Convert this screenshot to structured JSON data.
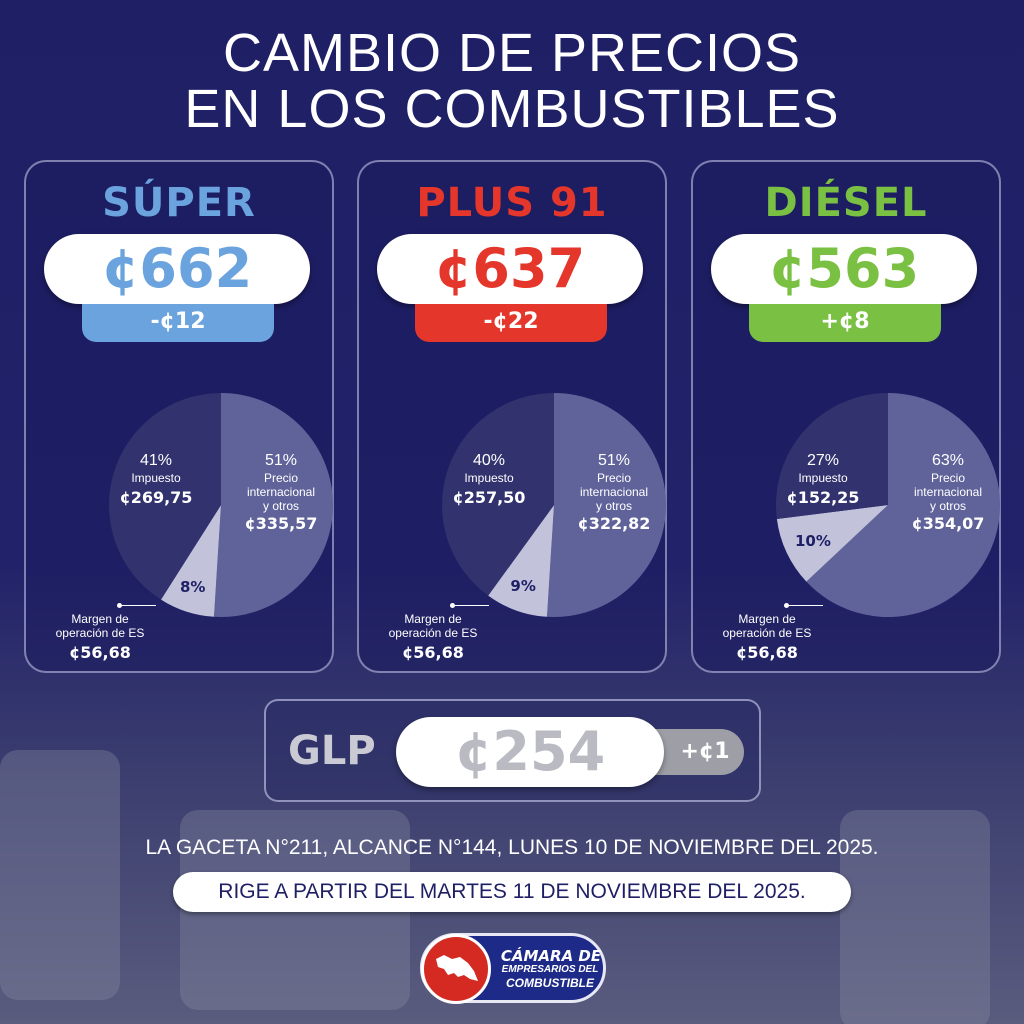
{
  "title": {
    "line1": "CAMBIO DE PRECIOS",
    "line2": "EN LOS COMBUSTIBLES"
  },
  "fuels": [
    {
      "name": "SÚPER",
      "price": "¢662",
      "change": "-¢12",
      "color": "#6aa3de",
      "impuesto": {
        "pct": "41%",
        "label": "Impuesto",
        "amount": "¢269,75",
        "share": 41
      },
      "precio": {
        "pct": "51%",
        "label1": "Precio",
        "label2": "internacional",
        "label3": "y otros",
        "amount": "¢335,57",
        "share": 51
      },
      "margen": {
        "pct": "8%",
        "label1": "Margen de",
        "label2": "operación de ES",
        "amount": "¢56,68",
        "share": 8
      }
    },
    {
      "name": "PLUS 91",
      "price": "¢637",
      "change": "-¢22",
      "color": "#e5362b",
      "impuesto": {
        "pct": "40%",
        "label": "Impuesto",
        "amount": "¢257,50",
        "share": 40
      },
      "precio": {
        "pct": "51%",
        "label1": "Precio",
        "label2": "internacional",
        "label3": "y otros",
        "amount": "¢322,82",
        "share": 51
      },
      "margen": {
        "pct": "9%",
        "label1": "Margen de",
        "label2": "operación de ES",
        "amount": "¢56,68",
        "share": 9
      }
    },
    {
      "name": "DIÉSEL",
      "price": "¢563",
      "change": "+¢8",
      "color": "#7ac143",
      "impuesto": {
        "pct": "27%",
        "label": "Impuesto",
        "amount": "¢152,25",
        "share": 27
      },
      "precio": {
        "pct": "63%",
        "label1": "Precio",
        "label2": "internacional",
        "label3": "y otros",
        "amount": "¢354,07",
        "share": 63
      },
      "margen": {
        "pct": "10%",
        "label1": "Margen de",
        "label2": "operación de ES",
        "amount": "¢56,68",
        "share": 10
      }
    }
  ],
  "glp": {
    "name": "GLP",
    "price": "¢254",
    "change": "+¢1"
  },
  "gaceta": "LA GACETA N°211, ALCANCE N°144, LUNES 10 DE NOVIEMBRE DEL 2025.",
  "rige": "RIGE A PARTIR DEL MARTES 11 DE NOVIEMBRE DEL 2025.",
  "logo": {
    "line1": "CÁMARA DE",
    "line2": "EMPRESARIOS DEL",
    "line3": "COMBUSTIBLE"
  },
  "colors": {
    "slice_impuesto": "#32326f",
    "slice_precio": "#60639a",
    "slice_margen": "#c2c3db"
  }
}
